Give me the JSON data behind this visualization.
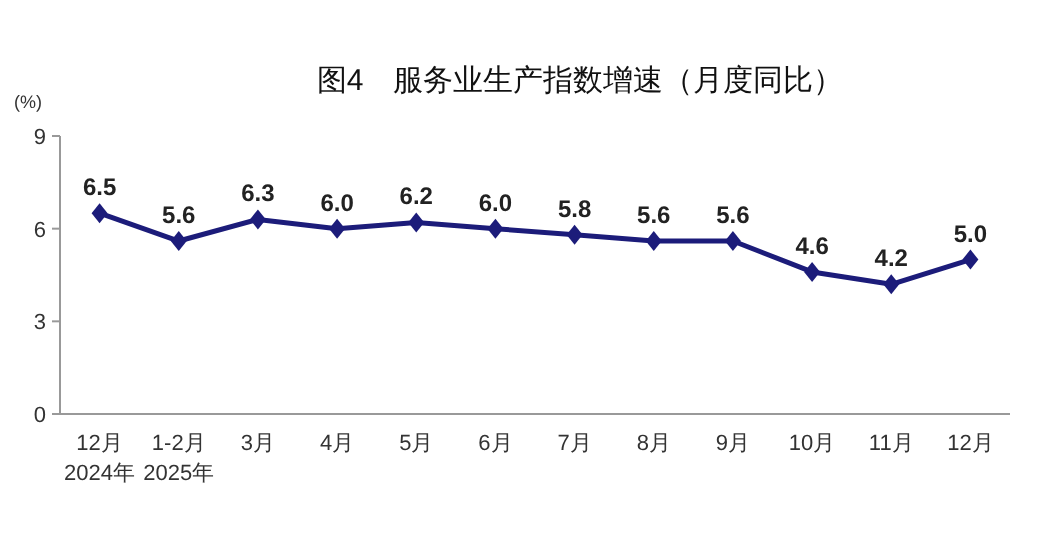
{
  "chart_data": {
    "type": "line",
    "title": "图4　服务业生产指数增速（月度同比）",
    "ylabel": "(%)",
    "categories": [
      "12月",
      "1-2月",
      "3月",
      "4月",
      "5月",
      "6月",
      "7月",
      "8月",
      "9月",
      "10月",
      "11月",
      "12月"
    ],
    "values": [
      6.5,
      5.6,
      6.3,
      6.0,
      6.2,
      6.0,
      5.8,
      5.6,
      5.6,
      4.6,
      4.2,
      5.0
    ],
    "color": "#1c1c7a",
    "ylim": [
      0,
      9
    ],
    "yticks": [
      0,
      3,
      6,
      9
    ],
    "marker": "diamond",
    "value_labels": [
      "6.5",
      "5.6",
      "6.3",
      "6.0",
      "6.2",
      "6.0",
      "5.8",
      "5.6",
      "5.6",
      "4.6",
      "4.2",
      "5.0"
    ],
    "annotations": [
      "2024年",
      "2025年"
    ]
  }
}
